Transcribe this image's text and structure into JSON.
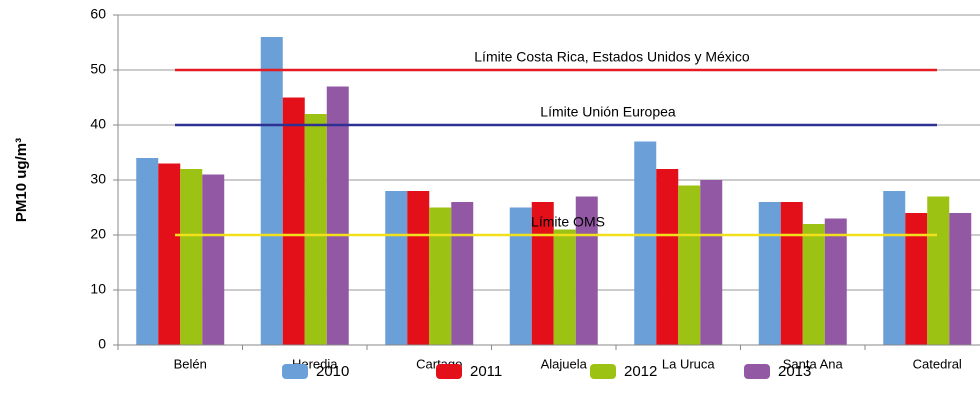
{
  "chart_data": {
    "type": "bar",
    "y_label": "PM10 ug/m³",
    "categories": [
      "Belén",
      "Heredia",
      "Cartago",
      "Alajuela",
      "La Uruca",
      "Santa Ana",
      "Catedral"
    ],
    "series": [
      {
        "name": "2010",
        "color": "#6a9fd8",
        "values": [
          34,
          56,
          28,
          25,
          37,
          26,
          28
        ]
      },
      {
        "name": "2011",
        "color": "#e3101a",
        "values": [
          33,
          45,
          28,
          26,
          32,
          26,
          24
        ]
      },
      {
        "name": "2012",
        "color": "#9cc313",
        "values": [
          32,
          42,
          25,
          21,
          29,
          22,
          27
        ]
      },
      {
        "name": "2013",
        "color": "#9358a4",
        "values": [
          31,
          47,
          26,
          27,
          30,
          23,
          24
        ]
      }
    ],
    "reference_lines": [
      {
        "value": 50,
        "label": "Límite Costa Rica, Estados Unidos y México",
        "color": "#e31c23"
      },
      {
        "value": 40,
        "label": "Límite Unión Europea",
        "color": "#2e3192"
      },
      {
        "value": 20,
        "label": "Límite OMS",
        "color": "#f2e01c"
      }
    ],
    "ylim": [
      0,
      60
    ],
    "yticks": [
      0,
      10,
      20,
      30,
      40,
      50,
      60
    ],
    "grid": true
  }
}
